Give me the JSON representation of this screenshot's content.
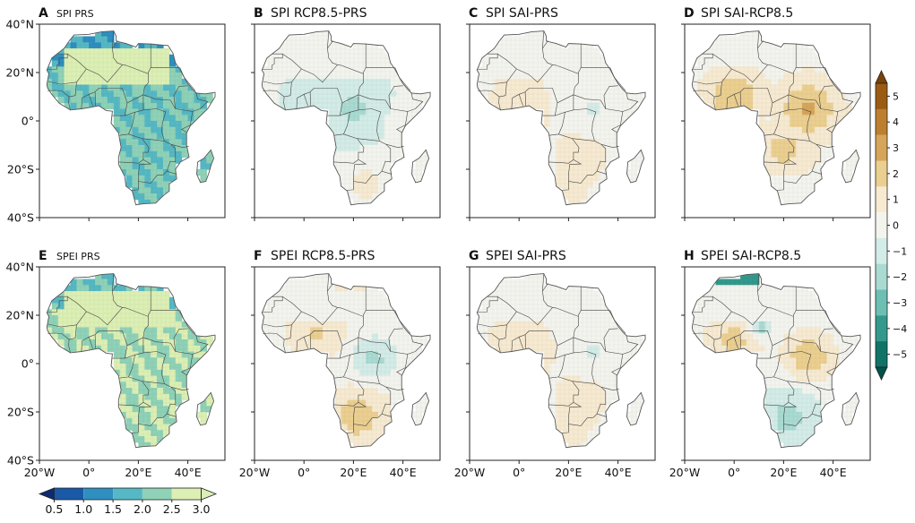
{
  "chart_data": {
    "type": "map-grid",
    "region": "Africa",
    "lat_ticks": [
      "40°N",
      "20°N",
      "0°",
      "20°S",
      "40°S"
    ],
    "lon_ticks": [
      "20°W",
      "0°",
      "20°E",
      "40°E"
    ],
    "panels": [
      {
        "label": "A",
        "title": "SPI PRS",
        "scale": "sequential",
        "pattern": "uniform",
        "level": 2.3
      },
      {
        "label": "B",
        "title": "SPI RCP8.5-PRS",
        "scale": "diverging",
        "pattern": "wetcenter",
        "level": -1.6
      },
      {
        "label": "C",
        "title": "SPI SAI-PRS",
        "scale": "diverging",
        "pattern": "drysahel",
        "level": 1.1
      },
      {
        "label": "D",
        "title": "SPI SAI-RCP8.5",
        "scale": "diverging",
        "pattern": "drycentral",
        "level": 2.6
      },
      {
        "label": "E",
        "title": "SPEI PRS",
        "scale": "sequential",
        "pattern": "uniform",
        "level": 2.7
      },
      {
        "label": "F",
        "title": "SPEI RCP8.5-PRS",
        "scale": "diverging",
        "pattern": "drysouth",
        "level": 2.0
      },
      {
        "label": "G",
        "title": "SPEI SAI-PRS",
        "scale": "diverging",
        "pattern": "drysahel",
        "level": 1.3
      },
      {
        "label": "H",
        "title": "SPEI SAI-RCP8.5",
        "scale": "diverging",
        "pattern": "dryeast",
        "level": 2.4
      }
    ],
    "colorbar_sequential": {
      "ticks": [
        "0.5",
        "1.0",
        "1.5",
        "2.0",
        "2.5",
        "3.0"
      ],
      "colors": [
        "#0d2a73",
        "#1a58a8",
        "#2e8fc0",
        "#56b8c4",
        "#8fd2b7",
        "#dcefb4"
      ]
    },
    "colorbar_diverging": {
      "ticks": [
        "5",
        "4",
        "3",
        "2",
        "1",
        "0",
        "−1",
        "−2",
        "−3",
        "−4",
        "−5"
      ],
      "colors": [
        "#7a4307",
        "#9c5b13",
        "#bd7f2e",
        "#d6a559",
        "#ebcf90",
        "#f7ead1",
        "#f4f4ef",
        "#d3ece8",
        "#a9dbd2",
        "#6cbfb2",
        "#33998c",
        "#107368",
        "#03524b"
      ]
    }
  }
}
